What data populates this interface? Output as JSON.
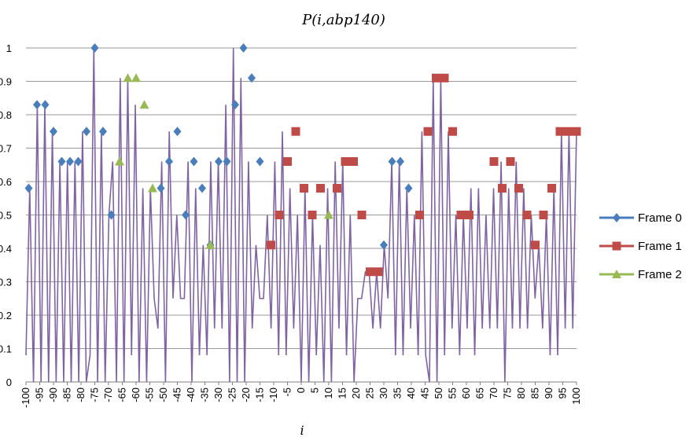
{
  "chart_data": {
    "type": "line",
    "title": "P(i,abp140)",
    "xlabel": "i",
    "ylabel": "",
    "xlim": [
      -100,
      100
    ],
    "ylim": [
      0,
      1
    ],
    "y_ticks": [
      0,
      0.1,
      0.2,
      0.3,
      0.4,
      0.5,
      0.6,
      0.7,
      0.8,
      0.9,
      1
    ],
    "y_tick_labels": [
      "0",
      "0.1",
      "0.2",
      "0.3",
      "0.4",
      "0.5",
      "0.6",
      "0.7",
      "0.8",
      "0.9",
      "1"
    ],
    "x_ticks": [
      -100,
      -95,
      -90,
      -85,
      -80,
      -75,
      -70,
      -65,
      -60,
      -55,
      -50,
      -45,
      -40,
      -35,
      -30,
      -25,
      -20,
      -15,
      -10,
      -5,
      0,
      5,
      10,
      15,
      20,
      25,
      30,
      35,
      40,
      45,
      50,
      55,
      60,
      65,
      70,
      75,
      80,
      85,
      90,
      95,
      100
    ],
    "x_tick_labels": [
      "-100",
      "-95",
      "-90",
      "-85",
      "-80",
      "-75",
      "-70",
      "-65",
      "-60",
      "-55",
      "-50",
      "-45",
      "-40",
      "-35",
      "-30",
      "-25",
      "-20",
      "-15",
      "-10",
      "-5",
      "0",
      "5",
      "10",
      "15",
      "20",
      "25",
      "30",
      "35",
      "40",
      "45",
      "50",
      "55",
      "60",
      "65",
      "70",
      "75",
      "80",
      "85",
      "90",
      "95",
      "100"
    ],
    "grid": true,
    "legend_position": "right",
    "colors": {
      "Frame 0": "#4a7ebb",
      "Frame 1": "#be4b48",
      "Frame 2": "#98b954",
      "trace": "#8064a2"
    },
    "trace_values": [
      0.08,
      0.58,
      0,
      0.83,
      0,
      0.83,
      0,
      0.75,
      0,
      0.66,
      0,
      0.66,
      0,
      0.66,
      0,
      0.75,
      0,
      0.08,
      1,
      0,
      0.75,
      0,
      0.5,
      0.66,
      0,
      0.91,
      0,
      0.91,
      0.08,
      0.83,
      0,
      0.58,
      0,
      0.58,
      0.25,
      0.16,
      0.66,
      0,
      0.75,
      0.25,
      0.5,
      0.25,
      0.25,
      0.66,
      0,
      0.58,
      0.08,
      0.41,
      0.08,
      0.66,
      0.16,
      0.66,
      0.16,
      0.83,
      0,
      1,
      0,
      0.91,
      0,
      0.66,
      0.16,
      0.41,
      0.25,
      0.25,
      0.5,
      0.16,
      0.66,
      0.08,
      0.75,
      0.08,
      0.58,
      0.16,
      0.5,
      0,
      0.58,
      0,
      0.5,
      0.08,
      0.41,
      0,
      0.58,
      0,
      0.66,
      0.16,
      0.66,
      0.08,
      0.5,
      0,
      0.25,
      0.25,
      0.33,
      0.33,
      0.16,
      0.33,
      0.16,
      0.41,
      0.25,
      0.66,
      0.08,
      0.66,
      0.08,
      0.58,
      0.16,
      0.5,
      0.08,
      0.75,
      0.08,
      0,
      0.91,
      0,
      0.91,
      0.08,
      0.75,
      0.16,
      0.5,
      0.08,
      0.5,
      0.16,
      0.58,
      0.08,
      0.58,
      0.16,
      0.5,
      0.16,
      0.58,
      0.16,
      0.66,
      0,
      0.58,
      0.16,
      0.66,
      0.16,
      0.58,
      0.16,
      0.5,
      0.25,
      0.41,
      0.16,
      0.5,
      0.08,
      0.58,
      0.08,
      0.75,
      0.16,
      0.75,
      0.16,
      0.75
    ],
    "series": [
      {
        "name": "Frame 0",
        "marker": "diamond",
        "points": [
          [
            -99,
            0.58
          ],
          [
            -96,
            0.83
          ],
          [
            -93,
            0.83
          ],
          [
            -90,
            0.75
          ],
          [
            -87,
            0.66
          ],
          [
            -84,
            0.66
          ],
          [
            -81,
            0.66
          ],
          [
            -78,
            0.75
          ],
          [
            -75,
            1
          ],
          [
            -72,
            0.75
          ],
          [
            -69,
            0.5
          ],
          [
            -51,
            0.58
          ],
          [
            -48,
            0.66
          ],
          [
            -45,
            0.75
          ],
          [
            -42,
            0.5
          ],
          [
            -39,
            0.66
          ],
          [
            -36,
            0.58
          ],
          [
            -33,
            0.41
          ],
          [
            -30,
            0.66
          ],
          [
            -27,
            0.66
          ],
          [
            -24,
            0.83
          ],
          [
            -21,
            1
          ],
          [
            -18,
            0.91
          ],
          [
            -15,
            0.66
          ],
          [
            30,
            0.41
          ],
          [
            33,
            0.66
          ],
          [
            36,
            0.66
          ],
          [
            39,
            0.58
          ]
        ]
      },
      {
        "name": "Frame 1",
        "marker": "square",
        "points": [
          [
            -11,
            0.41
          ],
          [
            -8,
            0.5
          ],
          [
            -5,
            0.66
          ],
          [
            -2,
            0.75
          ],
          [
            1,
            0.58
          ],
          [
            4,
            0.5
          ],
          [
            7,
            0.58
          ],
          [
            13,
            0.58
          ],
          [
            16,
            0.66
          ],
          [
            19,
            0.66
          ],
          [
            22,
            0.5
          ],
          [
            25,
            0.33
          ],
          [
            28,
            0.33
          ],
          [
            43,
            0.5
          ],
          [
            46,
            0.75
          ],
          [
            49,
            0.91
          ],
          [
            52,
            0.91
          ],
          [
            55,
            0.75
          ],
          [
            58,
            0.5
          ],
          [
            61,
            0.5
          ],
          [
            70,
            0.66
          ],
          [
            73,
            0.58
          ],
          [
            76,
            0.66
          ],
          [
            79,
            0.58
          ],
          [
            82,
            0.5
          ],
          [
            85,
            0.41
          ],
          [
            88,
            0.5
          ],
          [
            91,
            0.58
          ],
          [
            94,
            0.75
          ],
          [
            97,
            0.75
          ],
          [
            100,
            0.75
          ]
        ]
      },
      {
        "name": "Frame 2",
        "marker": "triangle",
        "points": [
          [
            -66,
            0.66
          ],
          [
            -63,
            0.91
          ],
          [
            -60,
            0.91
          ],
          [
            -57,
            0.83
          ],
          [
            -54,
            0.58
          ],
          [
            -33,
            0.41
          ],
          [
            10,
            0.5
          ]
        ]
      }
    ]
  }
}
